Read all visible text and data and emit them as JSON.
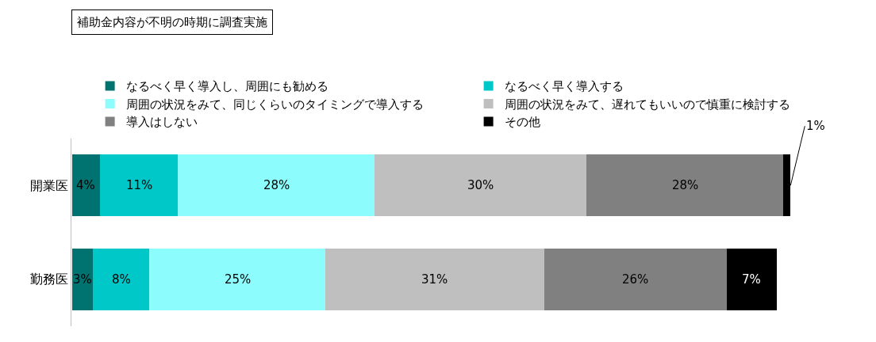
{
  "chart_data": {
    "type": "bar",
    "orientation": "horizontal",
    "stacked": true,
    "title": "補助金内容が不明の時期に調査実施",
    "categories": [
      "開業医",
      "勤務医"
    ],
    "series": [
      {
        "name": "なるべく早く導入し、周囲にも勧める",
        "color": "#007370",
        "values": [
          4,
          3
        ],
        "value_labels": [
          "4%",
          "3%"
        ]
      },
      {
        "name": "なるべく早く導入する",
        "color": "#00c8c8",
        "values": [
          11,
          8
        ],
        "value_labels": [
          "11%",
          "8%"
        ]
      },
      {
        "name": "周囲の状況をみて、同じくらいのタイミングで導入する",
        "color": "#8cfcfc",
        "values": [
          28,
          25
        ],
        "value_labels": [
          "28%",
          "25%"
        ]
      },
      {
        "name": "周囲の状況をみて、遅れてもいいので慎重に検討する",
        "color": "#bfbfbf",
        "values": [
          30,
          31
        ],
        "value_labels": [
          "30%",
          "31%"
        ]
      },
      {
        "name": "導入はしない",
        "color": "#808080",
        "values": [
          28,
          26
        ],
        "value_labels": [
          "28%",
          "26%"
        ]
      },
      {
        "name": "その他",
        "color": "#000000",
        "values": [
          1,
          7
        ],
        "value_labels": [
          "1%",
          "7%"
        ]
      }
    ],
    "legend": "top",
    "tick_labels": "y"
  }
}
